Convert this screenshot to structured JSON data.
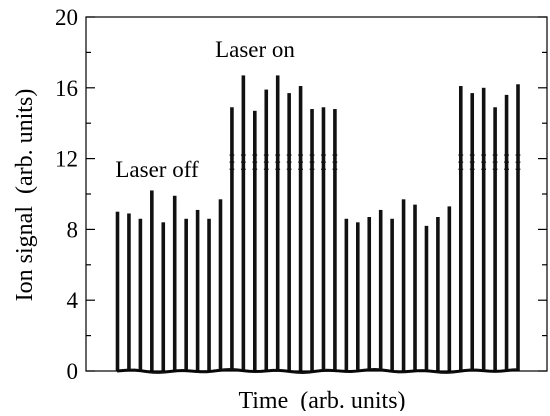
{
  "chart_data": {
    "type": "bar",
    "title": "",
    "xlabel": "Time  (arb. units)",
    "ylabel": "Ion signal  (arb. units)",
    "ylim": [
      0,
      20
    ],
    "xlim": [
      -0.5,
      35.5
    ],
    "yticks": [
      0,
      4,
      8,
      12,
      16,
      20
    ],
    "ytick_labels": [
      "0",
      "4",
      "8",
      "12",
      "16",
      "20"
    ],
    "minor_yticks": [
      2,
      6,
      10,
      14,
      18
    ],
    "grid": false,
    "legend": "none",
    "bar_color": "#111111",
    "axis_color": "#000000",
    "series": [
      {
        "values": [
          9.0,
          8.9,
          8.6,
          10.2,
          8.4,
          9.9,
          8.6,
          9.1,
          8.6,
          9.7,
          14.9,
          16.7,
          14.7,
          15.9,
          16.7,
          15.7,
          16.1,
          14.8,
          14.9,
          14.8,
          8.6,
          8.4,
          8.7,
          9.1,
          8.6,
          9.7,
          9.4,
          8.2,
          8.7,
          9.3,
          16.1,
          15.7,
          16.0,
          14.9,
          15.6,
          16.2
        ]
      }
    ],
    "extra_bars": [
      15.2,
      15.8,
      15.5,
      16.0
    ],
    "annotations": [
      {
        "text": "Laser off",
        "x": 4.5,
        "y": 11.3
      },
      {
        "text": "Laser on",
        "x": 13.5,
        "y": 18.6
      }
    ]
  }
}
